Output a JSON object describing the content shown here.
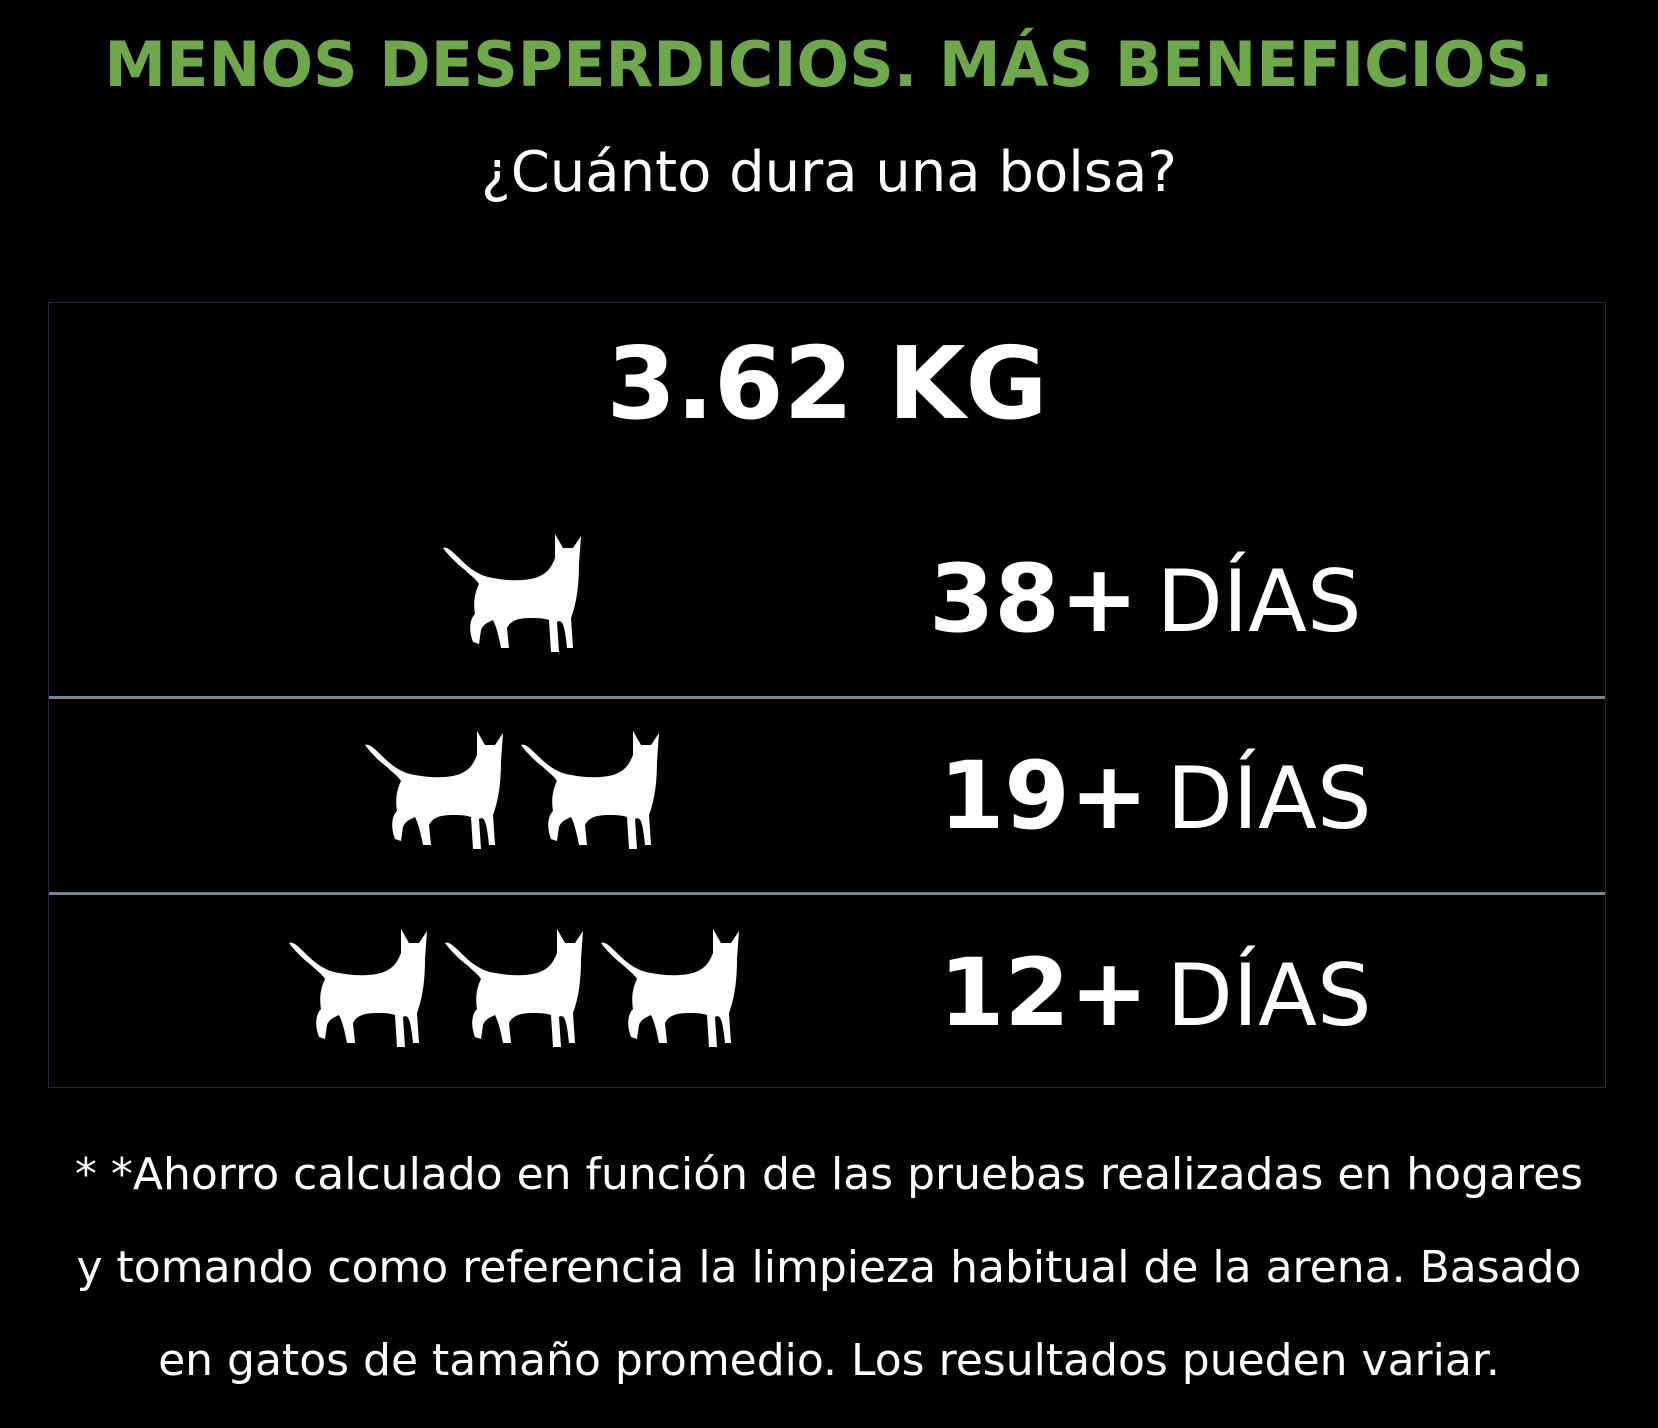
{
  "headline": "MENOS DESPERDICIOS. MÁS BENEFICIOS.",
  "subtitle": "¿Cuánto dura una bolsa?",
  "table": {
    "weight": "3.62 KG",
    "rows": [
      {
        "cats": 1,
        "days": "38+",
        "unit": "DÍAS"
      },
      {
        "cats": 2,
        "days": "19+",
        "unit": "DÍAS"
      },
      {
        "cats": 3,
        "days": "12+",
        "unit": "DÍAS"
      }
    ],
    "icon": "cat-silhouette-icon"
  },
  "footnote": {
    "line1": "* *Ahorro calculado en función de las pruebas realizadas en hogares",
    "line2": "y tomando como referencia la limpieza habitual de la arena. Basado",
    "line3": "en gatos de tamaño promedio. Los resultados pueden variar."
  },
  "colors": {
    "background": "#000000",
    "headline": "#6fa84b",
    "text": "#ffffff",
    "divider": "#7b8590"
  }
}
